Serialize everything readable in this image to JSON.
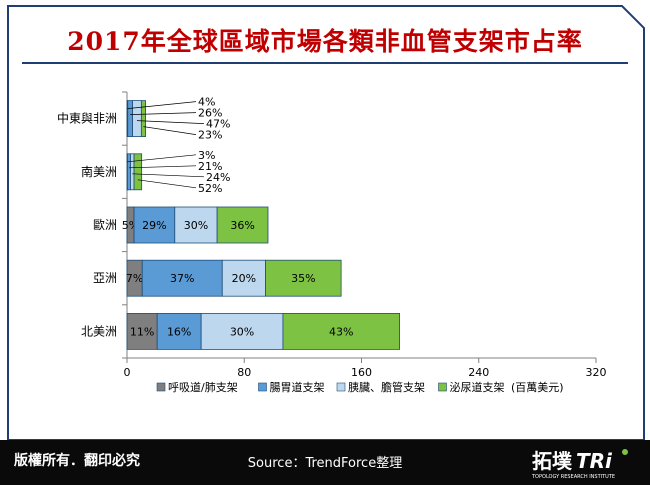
{
  "title": "2017年全球區域市場各類非血管支架市占率",
  "copyright": "版權所有．翻印必究",
  "source": "Source：TrendForce整理",
  "colors": {
    "respiratory": "#7f7f7f",
    "gi": "#5b9bd5",
    "pancreatic": "#bdd7ee",
    "urinary": "#7dc242",
    "frame_border": "#1f3f73",
    "title": "#c00000"
  },
  "chart_data": {
    "type": "bar",
    "orientation": "horizontal-stacked",
    "categories": [
      "北美洲",
      "亞洲",
      "歐洲",
      "南美洲",
      "中東與非洲"
    ],
    "series": [
      {
        "name": "呼吸道/肺支架",
        "values": [
          20.6,
          10.4,
          4.8,
          0.3,
          0.5
        ],
        "share_labels": [
          "11%",
          "7%",
          "5%",
          "3%",
          "4%"
        ]
      },
      {
        "name": "腸胃道支架",
        "values": [
          30.0,
          54.6,
          27.8,
          2.1,
          3.3
        ],
        "share_labels": [
          "16%",
          "37%",
          "29%",
          "21%",
          "26%"
        ]
      },
      {
        "name": "胰臟、膽管支架",
        "values": [
          55.8,
          29.5,
          28.9,
          2.4,
          6.0
        ],
        "share_labels": [
          "30%",
          "20%",
          "30%",
          "24%",
          "47%"
        ]
      },
      {
        "name": "泌尿道支架",
        "values": [
          79.6,
          51.6,
          34.7,
          5.2,
          2.9
        ],
        "share_labels": [
          "43%",
          "35%",
          "36%",
          "52%",
          "23%"
        ]
      }
    ],
    "xlim": [
      0,
      320
    ],
    "xticks": [
      0,
      80,
      160,
      240,
      320
    ],
    "unit": "(百萬美元)",
    "legend_position": "bottom",
    "grid": false
  }
}
